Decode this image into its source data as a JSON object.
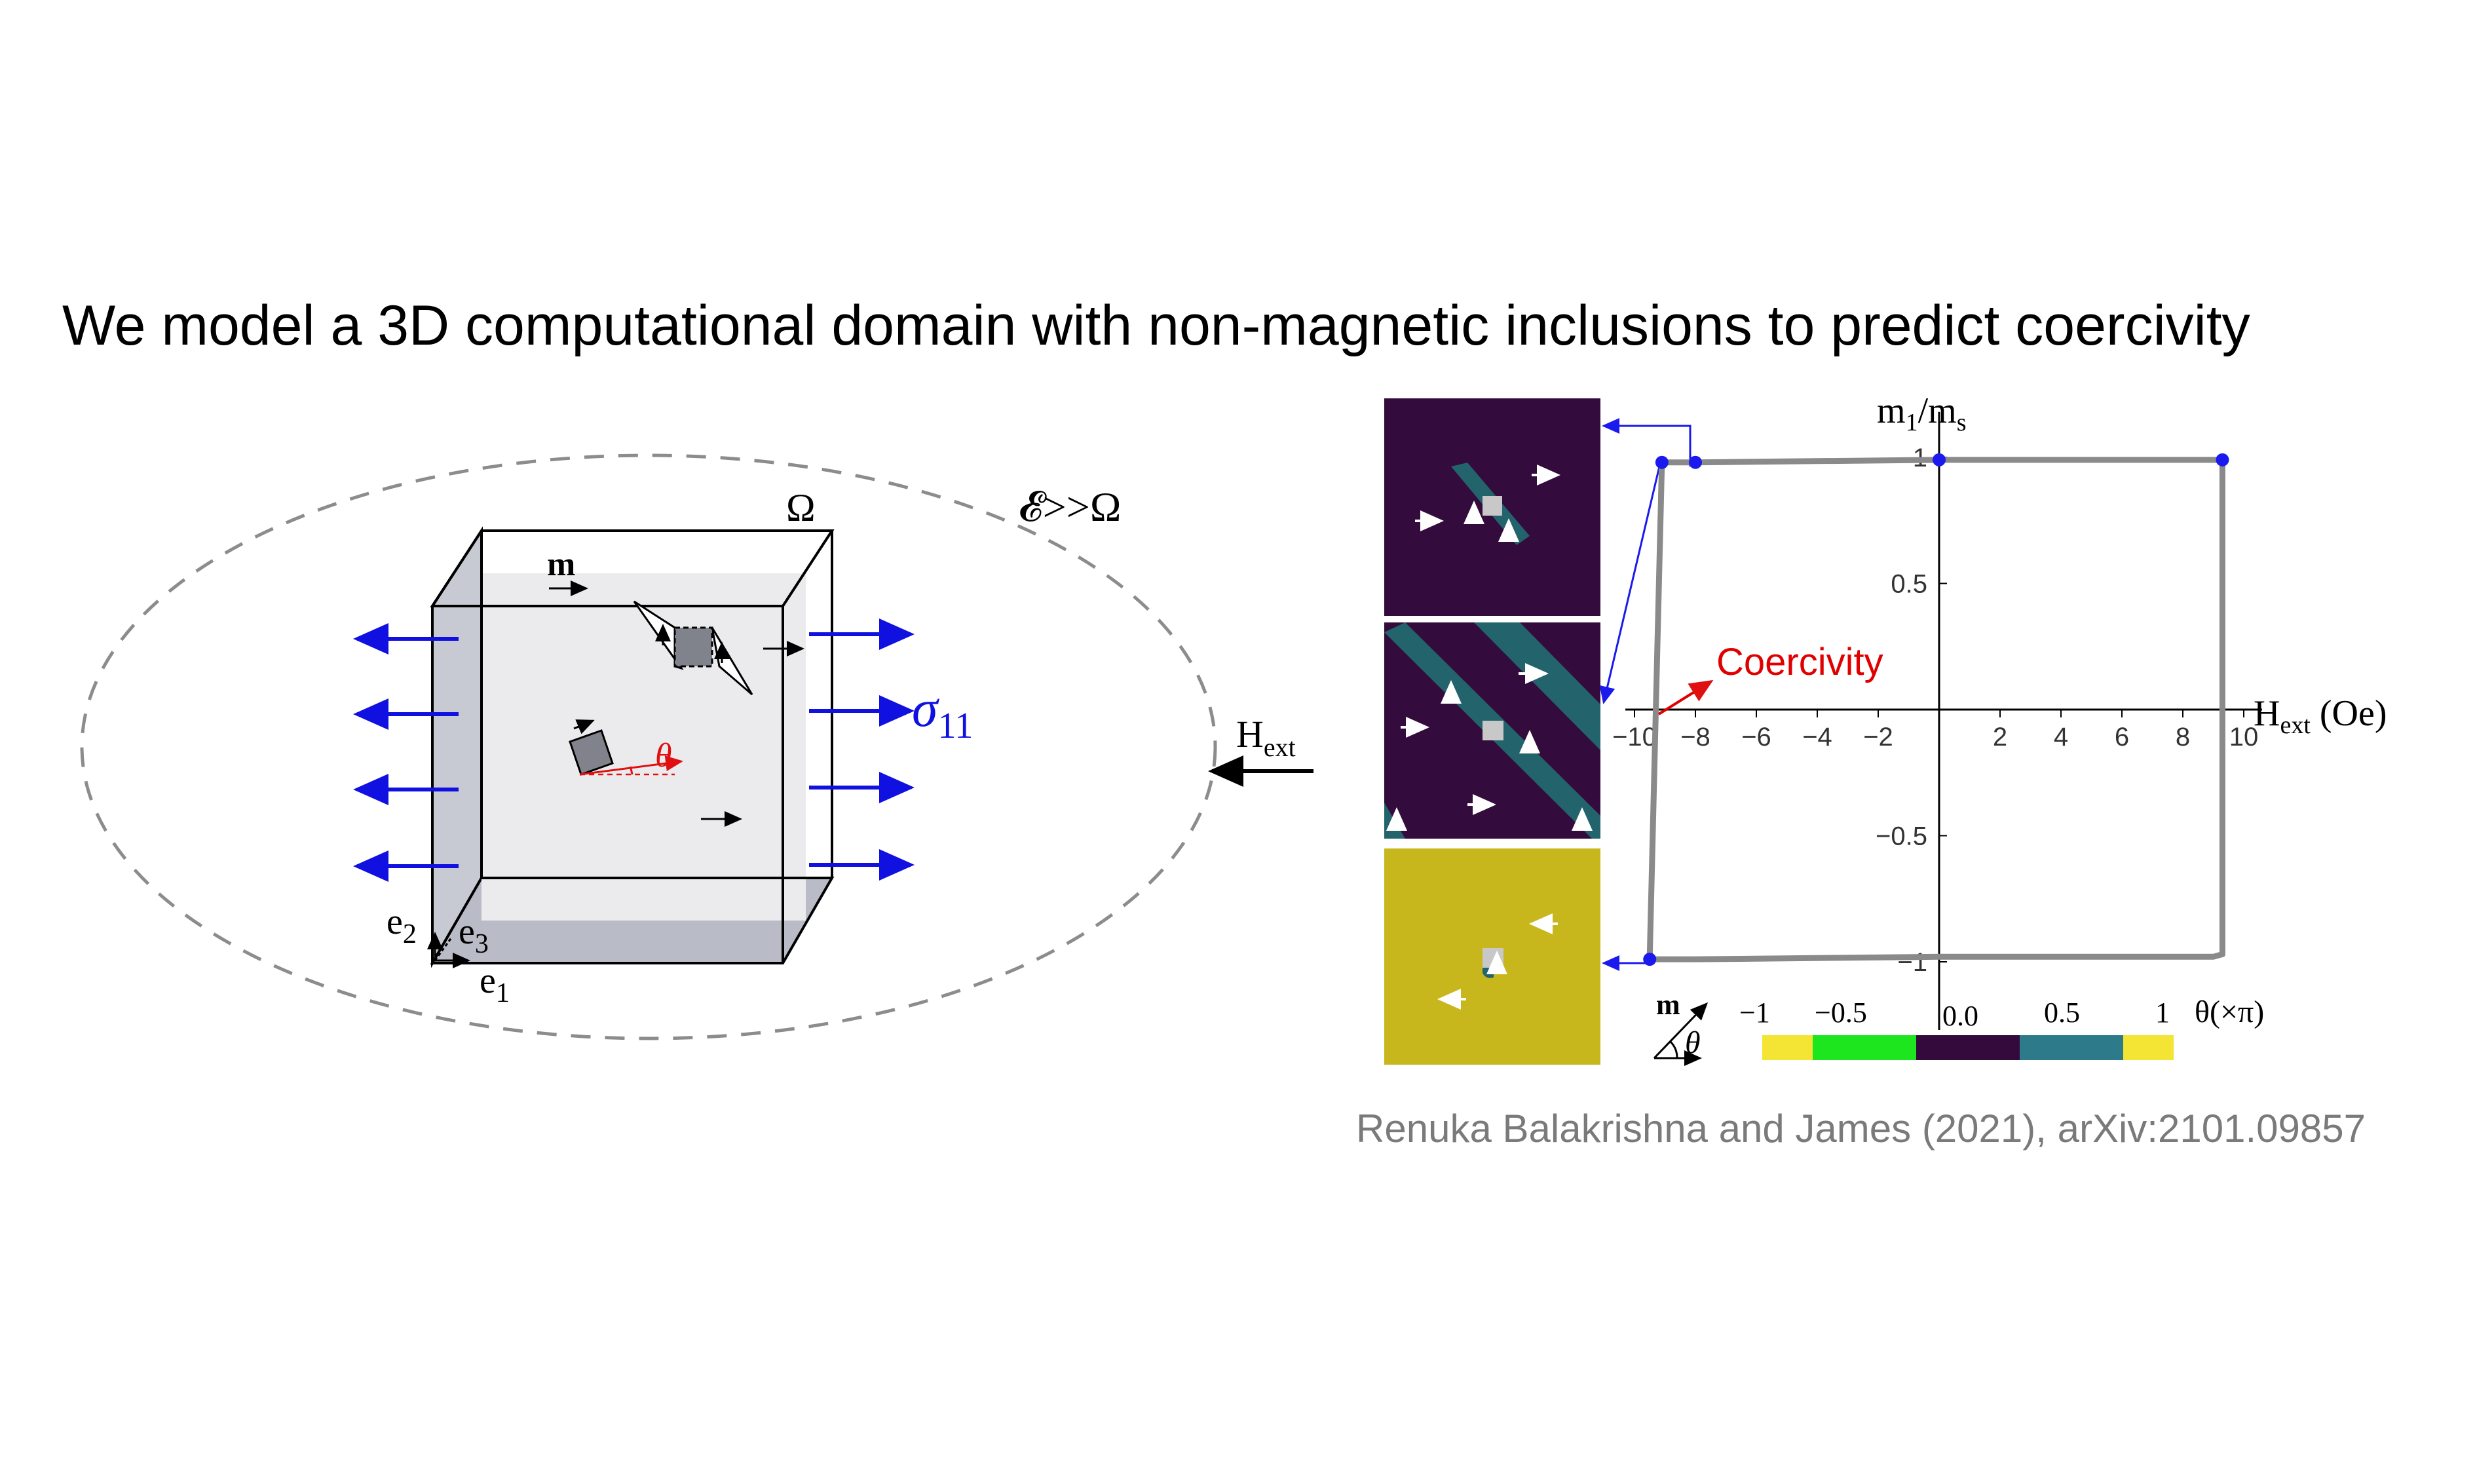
{
  "title": "We model a 3D computational domain with non-magnetic inclusions to predict coercivity",
  "citation": "Renuka Balakrishna and James (2021), arXiv:2101.09857",
  "schematic": {
    "domain_label": "Ω",
    "outer_label": "𝓔>>Ω",
    "magnetization_label": "m",
    "theta_label": "θ",
    "stress_label": "σ",
    "stress_sub": "11",
    "field_label": "H",
    "field_sub": "ext",
    "axis_e1": "e",
    "axis_e1_sub": "1",
    "axis_e2": "e",
    "axis_e2_sub": "2",
    "axis_e3": "e",
    "axis_e3_sub": "3"
  },
  "chart_data": {
    "type": "line",
    "title": "",
    "xlabel": "H",
    "xlabel_sub": "ext",
    "xlabel_unit": " (Oe)",
    "ylabel": "m",
    "ylabel_sub": "1",
    "ylabel_tail": "/m",
    "ylabel_tail_sub": "s",
    "xlim": [
      -10,
      10
    ],
    "ylim": [
      -1,
      1
    ],
    "x_ticks": [
      "−10",
      "−8",
      "−6",
      "−4",
      "−2",
      "2",
      "4",
      "6",
      "8",
      "10"
    ],
    "x_tick_values": [
      -10,
      -8,
      -6,
      -4,
      -2,
      2,
      4,
      6,
      8,
      10
    ],
    "y_ticks": [
      "1",
      "0.5",
      "−0.5",
      "−1"
    ],
    "y_tick_values": [
      1,
      0.5,
      -0.5,
      -1
    ],
    "series": [
      {
        "x": [
          -9.5,
          -9.1,
          -8.0,
          0,
          5,
          9.3,
          9.3,
          9.0,
          0,
          -8,
          -9.5,
          -9.5
        ],
        "y": [
          -0.98,
          0.98,
          0.98,
          0.99,
          0.99,
          0.99,
          -0.97,
          -0.98,
          -0.98,
          -0.99,
          -0.99,
          -0.98
        ]
      }
    ],
    "marked_points": [
      {
        "x": -9.1,
        "y": 0.98
      },
      {
        "x": -8.0,
        "y": 0.98
      },
      {
        "x": 0,
        "y": 0.99
      },
      {
        "x": 9.3,
        "y": 0.99
      },
      {
        "x": -9.5,
        "y": -0.99
      }
    ],
    "annotation": "Coercivity",
    "annotation_color": "#e00000",
    "curve_color": "#8a8a8a",
    "marker_color": "#1a1aee"
  },
  "colorbar": {
    "magnetization_label": "m",
    "theta_label": "θ",
    "ticks": [
      "−1",
      "−0.5",
      "0.0",
      "0.5",
      "1"
    ],
    "unit_label": "θ(×π)",
    "colors": [
      "#f4e434",
      "#1ee61e",
      "#340a3c",
      "#2d7a8a",
      "#f4e434"
    ]
  },
  "colors": {
    "stress_arrow": "#1010e0",
    "theta_red": "#e01010",
    "domain_purple": "#330b3d",
    "domain_teal": "#23636b",
    "domain_yellow": "#c8b71c",
    "cube_face": "#ebebee",
    "cube_side": "#c4c6d0"
  }
}
